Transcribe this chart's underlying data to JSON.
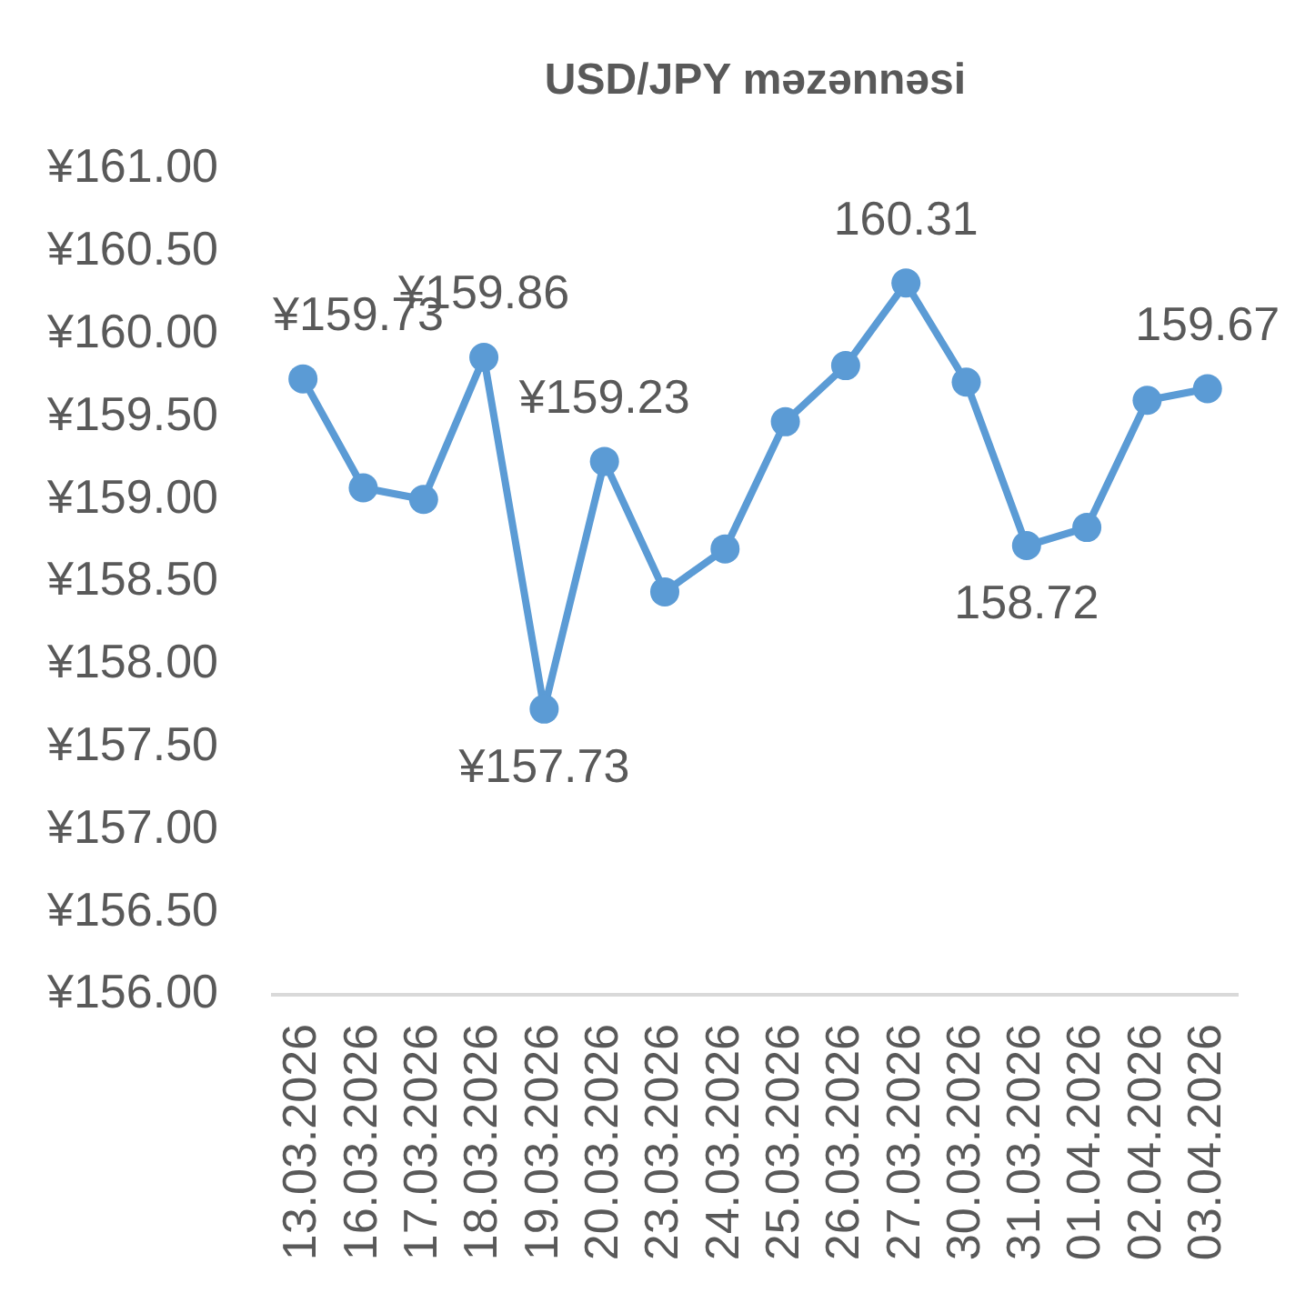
{
  "chart_data": {
    "type": "line",
    "title": "USD/JPY məzənnəsi",
    "categories": [
      "13.03.2026",
      "16.03.2026",
      "17.03.2026",
      "18.03.2026",
      "19.03.2026",
      "20.03.2026",
      "23.03.2026",
      "24.03.2026",
      "25.03.2026",
      "26.03.2026",
      "27.03.2026",
      "30.03.2026",
      "31.03.2026",
      "01.04.2026",
      "02.04.2026",
      "03.04.2026"
    ],
    "values": [
      159.73,
      159.07,
      159.0,
      159.86,
      157.73,
      159.23,
      158.44,
      158.7,
      159.47,
      159.81,
      160.31,
      159.71,
      158.72,
      158.83,
      159.6,
      159.67
    ],
    "value_labels": [
      "¥159.73",
      null,
      null,
      "¥159.86",
      "¥157.73",
      "¥159.23",
      null,
      null,
      null,
      null,
      "160.31",
      null,
      "158.72",
      null,
      null,
      "159.67"
    ],
    "color": "#5b9bd5",
    "ylim": [
      156,
      161
    ],
    "yticks": [
      {
        "value": 156,
        "label": "¥156.00"
      },
      {
        "value": 156.5,
        "label": "¥156.50"
      },
      {
        "value": 157,
        "label": "¥157.00"
      },
      {
        "value": 157.5,
        "label": "¥157.50"
      },
      {
        "value": 158,
        "label": "¥158.00"
      },
      {
        "value": 158.5,
        "label": "¥158.50"
      },
      {
        "value": 159,
        "label": "¥159.00"
      },
      {
        "value": 159.5,
        "label": "¥159.50"
      },
      {
        "value": 160,
        "label": "¥160.00"
      },
      {
        "value": 160.5,
        "label": "¥160.50"
      },
      {
        "value": 161,
        "label": "¥161.00"
      }
    ],
    "grid": false,
    "legend": false,
    "marker": "circle",
    "line_style": "solid"
  }
}
